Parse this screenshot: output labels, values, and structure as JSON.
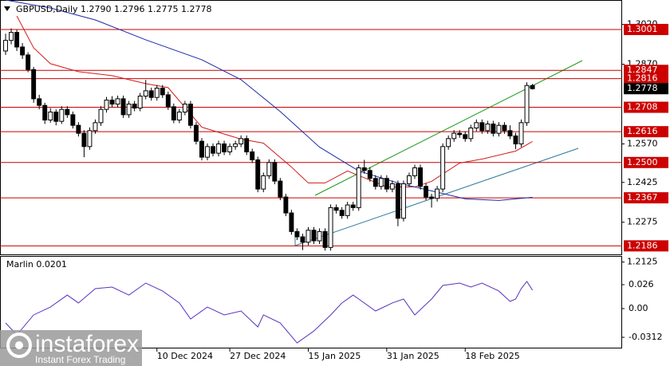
{
  "chart_data": [
    {
      "type": "candlestick",
      "title": "GBPUSD,Daily  1.2790 1.2796 1.2775 1.2778",
      "open": [
        1.292,
        1.296,
        1.299,
        1.2935,
        1.2905,
        1.285,
        1.274,
        1.2715,
        1.266,
        1.269,
        1.2655,
        1.27,
        1.268,
        1.264,
        1.261,
        1.256,
        1.262,
        1.265,
        1.27,
        1.2735,
        1.272,
        1.274,
        1.268,
        1.272,
        1.2705,
        1.275,
        1.277,
        1.2745,
        1.278,
        1.2755,
        1.271,
        1.266,
        1.269,
        1.272,
        1.264,
        1.258,
        1.252,
        1.256,
        1.2535,
        1.257,
        1.254,
        1.256,
        1.257,
        1.259,
        1.254,
        1.251,
        1.24,
        1.245,
        1.25,
        1.243,
        1.237,
        1.231,
        1.224,
        1.222,
        1.22,
        1.2245,
        1.2205,
        1.224,
        1.218,
        1.233,
        1.232,
        1.23,
        1.234,
        1.233,
        1.248,
        1.247,
        1.244,
        1.241,
        1.244,
        1.24,
        1.242,
        1.229,
        1.242,
        1.245,
        1.248,
        1.241,
        1.237,
        1.2365,
        1.24,
        1.256,
        1.259,
        1.261,
        1.2605,
        1.259,
        1.263,
        1.265,
        1.262,
        1.2645,
        1.261,
        1.264,
        1.262,
        1.26,
        1.257,
        1.265,
        1.279
      ],
      "high": [
        1.2985,
        1.3005,
        1.3,
        1.295,
        1.2915,
        1.286,
        1.2755,
        1.2725,
        1.2705,
        1.27,
        1.2712,
        1.2712,
        1.2692,
        1.2652,
        1.2622,
        1.2632,
        1.2662,
        1.2712,
        1.2747,
        1.275,
        1.2752,
        1.2752,
        1.2732,
        1.2732,
        1.2762,
        1.2811,
        1.2782,
        1.2792,
        1.2792,
        1.2767,
        1.2722,
        1.2702,
        1.2732,
        1.2732,
        1.2652,
        1.2592,
        1.2572,
        1.2572,
        1.2582,
        1.2582,
        1.2572,
        1.2582,
        1.2602,
        1.2602,
        1.2552,
        1.2522,
        1.2462,
        1.2512,
        1.2512,
        1.2442,
        1.2382,
        1.2322,
        1.2252,
        1.2232,
        1.2257,
        1.2257,
        1.2252,
        1.2252,
        1.2342,
        1.2342,
        1.2332,
        1.2352,
        1.2352,
        1.2492,
        1.251,
        1.2482,
        1.2452,
        1.2452,
        1.2452,
        1.2432,
        1.2432,
        1.2432,
        1.2462,
        1.2492,
        1.2492,
        1.2422,
        1.2382,
        1.2412,
        1.2572,
        1.2602,
        1.2622,
        1.2622,
        1.2617,
        1.2642,
        1.2662,
        1.2662,
        1.2657,
        1.2657,
        1.2652,
        1.2652,
        1.264,
        1.2612,
        1.2662,
        1.2802,
        1.2796
      ],
      "low": [
        1.2905,
        1.2945,
        1.292,
        1.289,
        1.284,
        1.2725,
        1.27,
        1.2645,
        1.265,
        1.264,
        1.2645,
        1.2668,
        1.2628,
        1.2598,
        1.252,
        1.2548,
        1.2608,
        1.2638,
        1.2688,
        1.2708,
        1.2708,
        1.2668,
        1.2668,
        1.2693,
        1.2693,
        1.2738,
        1.2733,
        1.2733,
        1.2743,
        1.2698,
        1.2648,
        1.2648,
        1.2678,
        1.2628,
        1.2568,
        1.2508,
        1.2508,
        1.2523,
        1.2523,
        1.2528,
        1.2528,
        1.2548,
        1.2558,
        1.2528,
        1.2498,
        1.2388,
        1.2388,
        1.2438,
        1.2418,
        1.2358,
        1.2298,
        1.2228,
        1.2208,
        1.217,
        1.2188,
        1.2193,
        1.2193,
        1.2168,
        1.2168,
        1.2308,
        1.2288,
        1.2288,
        1.2318,
        1.2318,
        1.2458,
        1.2428,
        1.2398,
        1.2398,
        1.2388,
        1.2388,
        1.226,
        1.2278,
        1.2408,
        1.2438,
        1.2398,
        1.2358,
        1.233,
        1.2353,
        1.2388,
        1.2548,
        1.2578,
        1.2593,
        1.2578,
        1.2578,
        1.2618,
        1.2608,
        1.2608,
        1.2598,
        1.2598,
        1.2608,
        1.2588,
        1.255,
        1.2558,
        1.2638,
        1.2775
      ],
      "close": [
        1.296,
        1.299,
        1.2935,
        1.2905,
        1.285,
        1.274,
        1.2715,
        1.266,
        1.269,
        1.2655,
        1.27,
        1.268,
        1.264,
        1.261,
        1.256,
        1.262,
        1.265,
        1.27,
        1.2735,
        1.272,
        1.274,
        1.268,
        1.272,
        1.2705,
        1.275,
        1.277,
        1.2745,
        1.278,
        1.2755,
        1.271,
        1.266,
        1.269,
        1.272,
        1.264,
        1.258,
        1.252,
        1.256,
        1.2535,
        1.257,
        1.254,
        1.256,
        1.257,
        1.259,
        1.254,
        1.251,
        1.24,
        1.245,
        1.25,
        1.243,
        1.237,
        1.231,
        1.224,
        1.222,
        1.22,
        1.2245,
        1.2205,
        1.224,
        1.218,
        1.233,
        1.232,
        1.23,
        1.234,
        1.233,
        1.248,
        1.247,
        1.244,
        1.241,
        1.244,
        1.24,
        1.242,
        1.229,
        1.242,
        1.245,
        1.248,
        1.241,
        1.237,
        1.2365,
        1.24,
        1.256,
        1.259,
        1.261,
        1.2605,
        1.259,
        1.263,
        1.265,
        1.262,
        1.2645,
        1.261,
        1.264,
        1.262,
        1.26,
        1.257,
        1.265,
        1.279,
        1.2778
      ],
      "up_color": "#ffffff",
      "down_color": "#000000",
      "overlays": [
        {
          "color": "#d01c1c",
          "x": [
            2,
            5,
            8,
            13,
            19,
            25,
            29,
            35,
            42,
            46,
            51,
            54,
            57,
            61,
            68,
            73,
            76,
            81,
            85,
            91,
            94
          ],
          "values": [
            1.3052,
            1.2932,
            1.2872,
            1.2842,
            1.2827,
            1.2797,
            1.2782,
            1.2633,
            1.2588,
            1.2573,
            1.2483,
            1.2423,
            1.2423,
            1.2468,
            1.2408,
            1.2408,
            1.2429,
            1.2498,
            1.2513,
            1.2543,
            1.2579
          ]
        },
        {
          "color": "#1c2aa8",
          "x": [
            0,
            8,
            16,
            25,
            35,
            42,
            49,
            56,
            63,
            70,
            76,
            82,
            88,
            94
          ],
          "values": [
            1.3112,
            1.3082,
            1.3037,
            1.2962,
            1.2887,
            1.2812,
            1.2692,
            1.2558,
            1.2468,
            1.2423,
            1.2393,
            1.2363,
            1.2357,
            1.2369
          ]
        }
      ],
      "levels": [
        1.3001,
        1.2847,
        1.2816,
        1.2708,
        1.2616,
        {
          "value": 1.25,
          "label": "1.2500"
        },
        1.2367,
        1.2186
      ],
      "level_color": "#cc0000",
      "last_price": 1.2778,
      "xlim": [
        -1,
        110
      ],
      "ylim": [
        1.2151,
        1.3112
      ],
      "yticks": [
        {
          "value": 1.302,
          "label": "1.3020"
        },
        {
          "value": 1.287,
          "label": "1.2870"
        },
        {
          "value": 1.257,
          "label": "1.2570"
        },
        1.2425,
        1.2275,
        1.2125
      ],
      "xticks": [
        {
          "value": 27,
          "label": "10 Dec 2024"
        },
        {
          "value": 40,
          "label": "27 Dec 2024"
        },
        {
          "value": 54,
          "label": "15 Jan 2025"
        },
        {
          "value": 68,
          "label": "31 Jan 2025"
        },
        {
          "value": 82,
          "label": "18 Feb 2025"
        }
      ]
    },
    {
      "type": "line",
      "title": "Marlin 0.0201",
      "color": "#5a32c0",
      "x": [
        0,
        2,
        5,
        8,
        11,
        13,
        16,
        19,
        22,
        25,
        28,
        31,
        33,
        36,
        39,
        42,
        45,
        46,
        49,
        52,
        55,
        58,
        60,
        62,
        63,
        66,
        69,
        71,
        72,
        73,
        76,
        78,
        81,
        83,
        85,
        88,
        90,
        91,
        92,
        93,
        94
      ],
      "values": [
        -0.0156,
        -0.0286,
        -0.0069,
        0.0017,
        0.0147,
        0.0061,
        0.0217,
        0.0234,
        0.0147,
        0.0277,
        0.0191,
        0.0061,
        -0.0113,
        0.0017,
        -0.0069,
        -0.0026,
        -0.0199,
        -0.0069,
        -0.0156,
        -0.0373,
        -0.0243,
        -0.0069,
        0.0061,
        0.0147,
        0.0104,
        -0.0026,
        0.0061,
        0.0104,
        0.0017,
        -0.0069,
        0.0104,
        0.0251,
        0.0277,
        0.0234,
        0.0277,
        0.0191,
        0.0078,
        0.0104,
        0.0217,
        0.0295,
        0.0201
      ],
      "xlim": [
        -1,
        110
      ],
      "ylim": [
        -0.0433,
        0.0563
      ],
      "yticks": [
        0.026,
        {
          "value": 0,
          "label": "0.00"
        },
        -0.0312
      ]
    }
  ],
  "watermark": {
    "brand": "instaforex",
    "tagline": "Instant Forex Trading"
  }
}
